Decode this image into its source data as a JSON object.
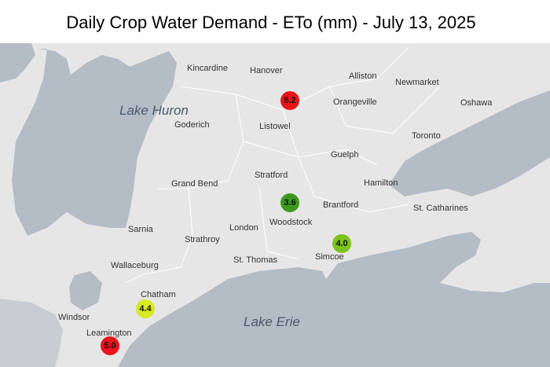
{
  "title": "Daily Crop Water Demand - ETo (mm) - July 13, 2025",
  "lakes": [
    "Lake Huron",
    "Lake Erie"
  ],
  "cities": [
    "Kincardine",
    "Hanover",
    "Alliston",
    "Newmarket",
    "Orangeville",
    "Oshawa",
    "Goderich",
    "Listowel",
    "Toronto",
    "Guelph",
    "Stratford",
    "Grand Bend",
    "Hamilton",
    "Brantford",
    "St. Catharines",
    "Woodstock",
    "Sarnia",
    "London",
    "Strathroy",
    "Simcoe",
    "Wallaceburg",
    "St. Thomas",
    "Chatham",
    "Windsor",
    "Leamington"
  ],
  "stations": [
    {
      "label": "5.2",
      "color": "#e8141a"
    },
    {
      "label": "3.6",
      "color": "#3b9a1f"
    },
    {
      "label": "4.0",
      "color": "#7cc21e"
    },
    {
      "label": "4.4",
      "color": "#d8ea22"
    },
    {
      "label": "5.0",
      "color": "#e8141a"
    }
  ]
}
